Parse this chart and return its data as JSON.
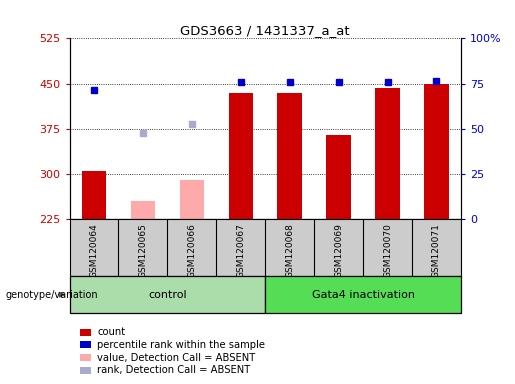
{
  "title": "GDS3663 / 1431337_a_at",
  "samples": [
    "GSM120064",
    "GSM120065",
    "GSM120066",
    "GSM120067",
    "GSM120068",
    "GSM120069",
    "GSM120070",
    "GSM120071"
  ],
  "count_values": [
    305,
    null,
    null,
    435,
    435,
    365,
    443,
    450
  ],
  "count_absent": [
    null,
    255,
    290,
    null,
    null,
    null,
    null,
    null
  ],
  "percentile_values": [
    440,
    null,
    null,
    452,
    452,
    453,
    452,
    455
  ],
  "percentile_absent": [
    null,
    367,
    383,
    null,
    null,
    null,
    null,
    null
  ],
  "ylim_left": [
    225,
    525
  ],
  "ylim_right": [
    0,
    100
  ],
  "yticks_left": [
    225,
    300,
    375,
    450,
    525
  ],
  "yticks_right": [
    0,
    25,
    50,
    75,
    100
  ],
  "color_count": "#cc0000",
  "color_count_absent": "#ffaaaa",
  "color_rank": "#0000cc",
  "color_rank_absent": "#aaaacc",
  "color_sample_bg": "#cccccc",
  "color_ctrl_bg": "#aaddaa",
  "color_gata_bg": "#55dd55",
  "legend_labels": [
    "count",
    "percentile rank within the sample",
    "value, Detection Call = ABSENT",
    "rank, Detection Call = ABSENT"
  ]
}
